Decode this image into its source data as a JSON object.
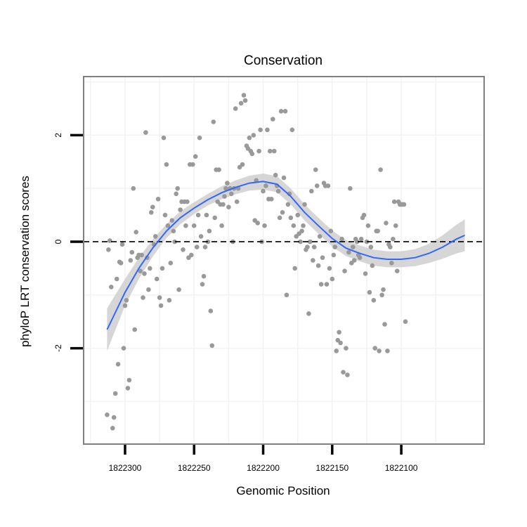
{
  "chart_data": {
    "type": "scatter",
    "title": "Conservation",
    "xlabel": "Genomic Position",
    "ylabel": "phyloP LRT conservation scores",
    "x_reversed": true,
    "xlim": [
      1822040,
      1822330
    ],
    "ylim": [
      -3.8,
      3.1
    ],
    "x_ticks": [
      1822300,
      1822250,
      1822200,
      1822150,
      1822100
    ],
    "y_ticks": [
      -2,
      0,
      2
    ],
    "grid": true,
    "legend": "none",
    "reference_line": {
      "y": 0,
      "style": "dashed"
    },
    "colors": {
      "points": "#999999",
      "smooth_line": "#3366ff",
      "confidence_band": "#cccccc",
      "panel_border": "#7f7f7f",
      "grid": "#f2f2f2"
    },
    "smooth": {
      "x": [
        1822313,
        1822300,
        1822290,
        1822280,
        1822270,
        1822260,
        1822250,
        1822240,
        1822230,
        1822220,
        1822210,
        1822200,
        1822190,
        1822180,
        1822170,
        1822160,
        1822150,
        1822140,
        1822130,
        1822120,
        1822110,
        1822100,
        1822090,
        1822080,
        1822070,
        1822060,
        1822054
      ],
      "y": [
        -1.65,
        -0.95,
        -0.5,
        -0.12,
        0.2,
        0.45,
        0.63,
        0.79,
        0.92,
        1.02,
        1.1,
        1.13,
        1.08,
        0.85,
        0.55,
        0.3,
        0.06,
        -0.12,
        -0.22,
        -0.3,
        -0.33,
        -0.33,
        -0.3,
        -0.22,
        -0.1,
        0.05,
        0.12
      ],
      "lower": [
        -2.05,
        -1.2,
        -0.7,
        -0.28,
        0.07,
        0.33,
        0.52,
        0.68,
        0.8,
        0.89,
        0.96,
        0.98,
        0.93,
        0.7,
        0.4,
        0.15,
        -0.09,
        -0.27,
        -0.37,
        -0.45,
        -0.48,
        -0.48,
        -0.46,
        -0.4,
        -0.32,
        -0.22,
        -0.18
      ],
      "upper": [
        -1.25,
        -0.7,
        -0.3,
        0.04,
        0.33,
        0.57,
        0.74,
        0.9,
        1.04,
        1.15,
        1.24,
        1.28,
        1.23,
        1.0,
        0.7,
        0.45,
        0.21,
        0.03,
        -0.07,
        -0.15,
        -0.18,
        -0.18,
        -0.14,
        -0.04,
        0.12,
        0.32,
        0.42
      ]
    },
    "points": [
      [
        1822313,
        -3.25
      ],
      [
        1822312,
        -0.15
      ],
      [
        1822311,
        0.02
      ],
      [
        1822310,
        -0.85
      ],
      [
        1822309,
        -3.5
      ],
      [
        1822308,
        -3.3
      ],
      [
        1822307,
        -2.85
      ],
      [
        1822306,
        -0.7
      ],
      [
        1822305,
        -2.3
      ],
      [
        1822304,
        -0.38
      ],
      [
        1822303,
        -0.4
      ],
      [
        1822302,
        -0.05
      ],
      [
        1822301,
        -2.0
      ],
      [
        1822300,
        -1.2
      ],
      [
        1822299,
        -1.1
      ],
      [
        1822298,
        -2.75
      ],
      [
        1822297,
        -2.6
      ],
      [
        1822296,
        -0.35
      ],
      [
        1822295,
        -0.2
      ],
      [
        1822294,
        1.0
      ],
      [
        1822293,
        -1.65
      ],
      [
        1822292,
        0.18
      ],
      [
        1822291,
        -0.3
      ],
      [
        1822290,
        -0.25
      ],
      [
        1822289,
        -0.55
      ],
      [
        1822288,
        -0.25
      ],
      [
        1822287,
        -1.05
      ],
      [
        1822286,
        -0.6
      ],
      [
        1822285,
        2.05
      ],
      [
        1822284,
        -0.3
      ],
      [
        1822283,
        -0.9
      ],
      [
        1822282,
        -0.5
      ],
      [
        1822281,
        0.55
      ],
      [
        1822280,
        0.65
      ],
      [
        1822279,
        -0.05
      ],
      [
        1822278,
        0.1
      ],
      [
        1822277,
        -0.7
      ],
      [
        1822276,
        0.8
      ],
      [
        1822275,
        -1.05
      ],
      [
        1822274,
        -1.2
      ],
      [
        1822273,
        -0.5
      ],
      [
        1822272,
        1.95
      ],
      [
        1822271,
        0.5
      ],
      [
        1822270,
        1.45
      ],
      [
        1822269,
        0.3
      ],
      [
        1822268,
        -1.1
      ],
      [
        1822267,
        -0.4
      ],
      [
        1822266,
        0.4
      ],
      [
        1822265,
        0.2
      ],
      [
        1822264,
        0.0
      ],
      [
        1822263,
        0.9
      ],
      [
        1822262,
        1.0
      ],
      [
        1822261,
        -0.9
      ],
      [
        1822260,
        0.6
      ],
      [
        1822259,
        0.75
      ],
      [
        1822258,
        -0.15
      ],
      [
        1822257,
        0.75
      ],
      [
        1822256,
        0.3
      ],
      [
        1822255,
        0.75
      ],
      [
        1822254,
        -0.3
      ],
      [
        1822253,
        1.45
      ],
      [
        1822252,
        -0.25
      ],
      [
        1822251,
        1.45
      ],
      [
        1822250,
        0.3
      ],
      [
        1822249,
        1.6
      ],
      [
        1822248,
        -0.1
      ],
      [
        1822247,
        0.5
      ],
      [
        1822246,
        1.95
      ],
      [
        1822245,
        0.1
      ],
      [
        1822244,
        -0.8
      ],
      [
        1822243,
        -0.65
      ],
      [
        1822242,
        -0.1
      ],
      [
        1822241,
        0.5
      ],
      [
        1822240,
        0.0
      ],
      [
        1822239,
        0.2
      ],
      [
        1822238,
        -1.3
      ],
      [
        1822237,
        -1.95
      ],
      [
        1822236,
        2.25
      ],
      [
        1822235,
        0.45
      ],
      [
        1822234,
        1.35
      ],
      [
        1822233,
        0.75
      ],
      [
        1822232,
        1.35
      ],
      [
        1822231,
        0.7
      ],
      [
        1822230,
        0.3
      ],
      [
        1822229,
        0.7
      ],
      [
        1822228,
        0.85
      ],
      [
        1822227,
        1.0
      ],
      [
        1822226,
        1.1
      ],
      [
        1822225,
        0.65
      ],
      [
        1822224,
        1.0
      ],
      [
        1822223,
        0.9
      ],
      [
        1822222,
        0.0
      ],
      [
        1822221,
        1.0
      ],
      [
        1822220,
        2.5
      ],
      [
        1822219,
        0.75
      ],
      [
        1822218,
        1.0
      ],
      [
        1822217,
        1.4
      ],
      [
        1822216,
        2.6
      ],
      [
        1822215,
        1.45
      ],
      [
        1822214,
        2.75
      ],
      [
        1822213,
        2.65
      ],
      [
        1822212,
        1.8
      ],
      [
        1822211,
        1.75
      ],
      [
        1822210,
        1.95
      ],
      [
        1822209,
        1.7
      ],
      [
        1822208,
        1.65
      ],
      [
        1822207,
        2.0
      ],
      [
        1822206,
        0.4
      ],
      [
        1822205,
        1.15
      ],
      [
        1822204,
        0.35
      ],
      [
        1822203,
        1.7
      ],
      [
        1822202,
        2.1
      ],
      [
        1822201,
        0.0
      ],
      [
        1822200,
        0.95
      ],
      [
        1822199,
        0.3
      ],
      [
        1822198,
        1.05
      ],
      [
        1822197,
        2.1
      ],
      [
        1822196,
        0.8
      ],
      [
        1822195,
        1.7
      ],
      [
        1822194,
        0.8
      ],
      [
        1822193,
        2.3
      ],
      [
        1822192,
        1.7
      ],
      [
        1822191,
        1.25
      ],
      [
        1822190,
        1.05
      ],
      [
        1822189,
        0.95
      ],
      [
        1822188,
        0.45
      ],
      [
        1822187,
        2.45
      ],
      [
        1822186,
        0.55
      ],
      [
        1822185,
        1.2
      ],
      [
        1822184,
        2.45
      ],
      [
        1822183,
        -1.0
      ],
      [
        1822182,
        0.7
      ],
      [
        1822181,
        0.9
      ],
      [
        1822180,
        0.45
      ],
      [
        1822179,
        2.1
      ],
      [
        1822178,
        0.3
      ],
      [
        1822177,
        -0.5
      ],
      [
        1822176,
        0.1
      ],
      [
        1822175,
        0.5
      ],
      [
        1822174,
        0.15
      ],
      [
        1822173,
        0.0
      ],
      [
        1822172,
        0.2
      ],
      [
        1822171,
        0.3
      ],
      [
        1822170,
        0.7
      ],
      [
        1822169,
        -0.15
      ],
      [
        1822168,
        -0.1
      ],
      [
        1822167,
        -1.35
      ],
      [
        1822166,
        0.0
      ],
      [
        1822165,
        0.95
      ],
      [
        1822164,
        -0.35
      ],
      [
        1822163,
        -0.1
      ],
      [
        1822162,
        1.35
      ],
      [
        1822161,
        1.05
      ],
      [
        1822160,
        -0.45
      ],
      [
        1822159,
        0.1
      ],
      [
        1822158,
        -0.8
      ],
      [
        1822157,
        -0.3
      ],
      [
        1822156,
        1.1
      ],
      [
        1822155,
        1.05
      ],
      [
        1822154,
        -0.8
      ],
      [
        1822153,
        1.05
      ],
      [
        1822152,
        -0.5
      ],
      [
        1822151,
        0.2
      ],
      [
        1822150,
        -0.7
      ],
      [
        1822149,
        -0.25
      ],
      [
        1822148,
        -0.1
      ],
      [
        1822147,
        -2.05
      ],
      [
        1822146,
        -1.85
      ],
      [
        1822145,
        -1.7
      ],
      [
        1822144,
        -1.9
      ],
      [
        1822143,
        0.05
      ],
      [
        1822142,
        -2.45
      ],
      [
        1822141,
        -0.55
      ],
      [
        1822140,
        -2.0
      ],
      [
        1822139,
        -2.5
      ],
      [
        1822138,
        -0.2
      ],
      [
        1822137,
        1.0
      ],
      [
        1822136,
        -0.4
      ],
      [
        1822135,
        -0.1
      ],
      [
        1822134,
        -0.35
      ],
      [
        1822133,
        0.05
      ],
      [
        1822132,
        0.0
      ],
      [
        1822131,
        -0.25
      ],
      [
        1822130,
        -0.3
      ],
      [
        1822129,
        0.05
      ],
      [
        1822128,
        0.45
      ],
      [
        1822127,
        0.5
      ],
      [
        1822126,
        -0.6
      ],
      [
        1822125,
        0.0
      ],
      [
        1822124,
        0.3
      ],
      [
        1822123,
        -0.95
      ],
      [
        1822122,
        -0.1
      ],
      [
        1822121,
        -0.45
      ],
      [
        1822120,
        -1.1
      ],
      [
        1822119,
        -2.0
      ],
      [
        1822118,
        0.2
      ],
      [
        1822117,
        0.2
      ],
      [
        1822116,
        -2.05
      ],
      [
        1822115,
        1.35
      ],
      [
        1822114,
        -1.0
      ],
      [
        1822113,
        -0.9
      ],
      [
        1822112,
        -1.55
      ],
      [
        1822111,
        0.35
      ],
      [
        1822110,
        -2.05
      ],
      [
        1822109,
        -0.05
      ],
      [
        1822108,
        -0.1
      ],
      [
        1822107,
        -0.4
      ],
      [
        1822106,
        0.05
      ],
      [
        1822105,
        0.75
      ],
      [
        1822104,
        0.3
      ],
      [
        1822103,
        -0.55
      ],
      [
        1822102,
        0.75
      ],
      [
        1822101,
        0.7
      ],
      [
        1822100,
        0.7
      ],
      [
        1822099,
        0.7
      ],
      [
        1822098,
        0.7
      ],
      [
        1822097,
        -1.5
      ]
    ]
  }
}
